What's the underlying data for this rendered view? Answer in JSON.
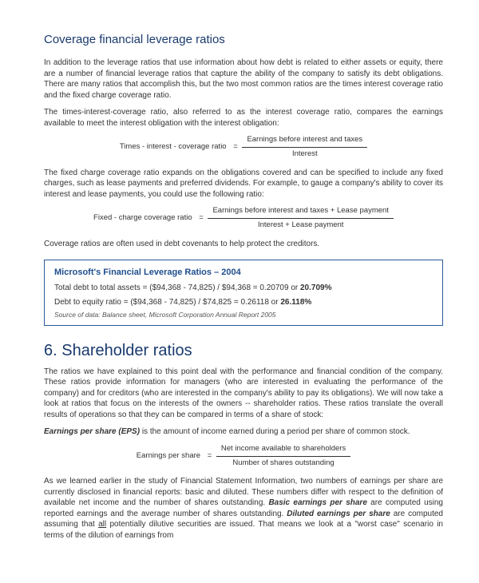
{
  "colors": {
    "heading": "#1a3a6e",
    "box_border": "#2a5a9e",
    "box_title": "#1f4e8c",
    "body_text": "#333333",
    "source_text": "#555555",
    "background": "#ffffff"
  },
  "section1": {
    "title": "Coverage financial leverage ratios",
    "p1": "In addition to the leverage ratios that use information about how debt is related to either assets or equity, there are a number of financial leverage ratios that capture the ability of the company to satisfy its debt obligations.  There are many ratios that accomplish this, but the two most common ratios are the times interest coverage ratio and the fixed charge coverage ratio.",
    "p2": "The times-interest-coverage ratio, also referred to as the interest coverage ratio, compares the earnings available to meet the interest obligation with the interest obligation:",
    "formula1": {
      "lhs": "Times - interest - coverage ratio",
      "numerator": "Earnings before interest and taxes",
      "denominator": "Interest"
    },
    "p3": "The fixed charge coverage ratio expands on the obligations covered and can be specified to include any fixed charges, such as lease payments and preferred dividends.  For example, to gauge a company's ability to cover its interest and lease payments, you could use the following ratio:",
    "formula2": {
      "lhs": "Fixed - charge coverage ratio",
      "numerator": "Earnings before interest and taxes + Lease payment",
      "denominator": "Interest + Lease payment"
    },
    "p4": "Coverage ratios are often used in debt covenants to help protect the creditors."
  },
  "box": {
    "title": "Microsoft's Financial Leverage Ratios – 2004",
    "line1_prefix": "Total debt to total assets = ($94,368 - 74,825) / $94,368 = 0.20709 or ",
    "line1_bold": "20.709%",
    "line2_prefix": "Debt to equity ratio = ($94,368 - 74,825) / $74,825 = 0.26118 or ",
    "line2_bold": "26.118%",
    "source": "Source of data:  Balance sheet, Microsoft Corporation Annual Report 2005"
  },
  "section2": {
    "number_title": "6.   Shareholder ratios",
    "p1": "The ratios we have explained to this point deal with the performance and financial condition of the company. These ratios provide information for managers (who are interested in evaluating the performance of the company) and for creditors (who are interested in the company's ability to pay its obligations). We will now take a look at ratios that focus on the interests of the owners -- shareholder ratios. These ratios translate the overall results of operations so that they can be compared in terms of a share of stock:",
    "eps_label": "Earnings per share (EPS)",
    "eps_rest": " is the amount of income earned during a period per share of common stock.",
    "formula3": {
      "lhs": "Earnings per share",
      "numerator": "Net income available to shareholders",
      "denominator": "Number of shares outstanding"
    },
    "p3_a": "As we learned earlier in the study of Financial Statement Information, two numbers of earnings per share are currently disclosed in financial reports: basic and diluted. These numbers differ with respect to the definition of available net income and the number of shares outstanding. ",
    "p3_b": "Basic earnings per share",
    "p3_c": " are computed using reported earnings and the average number of shares outstanding. ",
    "p3_d": "Diluted earnings per share",
    "p3_e": " are computed assuming that ",
    "p3_f": "all",
    "p3_g": " potentially dilutive securities are issued.  That means we look at a \"worst case\" scenario in terms of the dilution of earnings from"
  }
}
